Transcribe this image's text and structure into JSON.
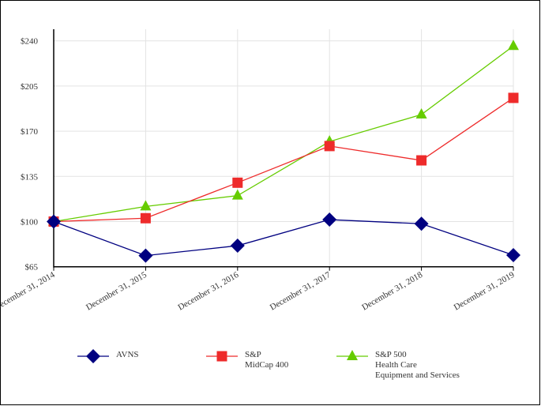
{
  "chart_data": {
    "type": "line",
    "categories": [
      "December 31, 2014",
      "December 31, 2015",
      "December 31, 2016",
      "December 31, 2017",
      "December 31, 2018",
      "December 31, 2019"
    ],
    "ylim": [
      65,
      240
    ],
    "yticks": [
      65,
      100,
      135,
      170,
      205,
      240
    ],
    "ytick_labels": [
      "$65",
      "$100",
      "$135",
      "$170",
      "$205",
      "$240"
    ],
    "grid": true,
    "legend_position": "bottom",
    "series": [
      {
        "name": "AVNS",
        "color": "#000080",
        "marker": "diamond",
        "values": [
          100,
          73.6,
          81.3,
          101.5,
          98.3,
          74.0
        ]
      },
      {
        "name": "S&P\nMidCap 400",
        "color": "#ee2b2b",
        "marker": "square",
        "values": [
          100,
          102.6,
          130.1,
          158.5,
          147.4,
          195.8
        ]
      },
      {
        "name": "S&P 500\nHealth Care\nEquipment and Services",
        "color": "#66cc00",
        "marker": "triangle",
        "values": [
          100,
          111.7,
          120.1,
          162.0,
          182.9,
          236.0
        ]
      }
    ]
  }
}
